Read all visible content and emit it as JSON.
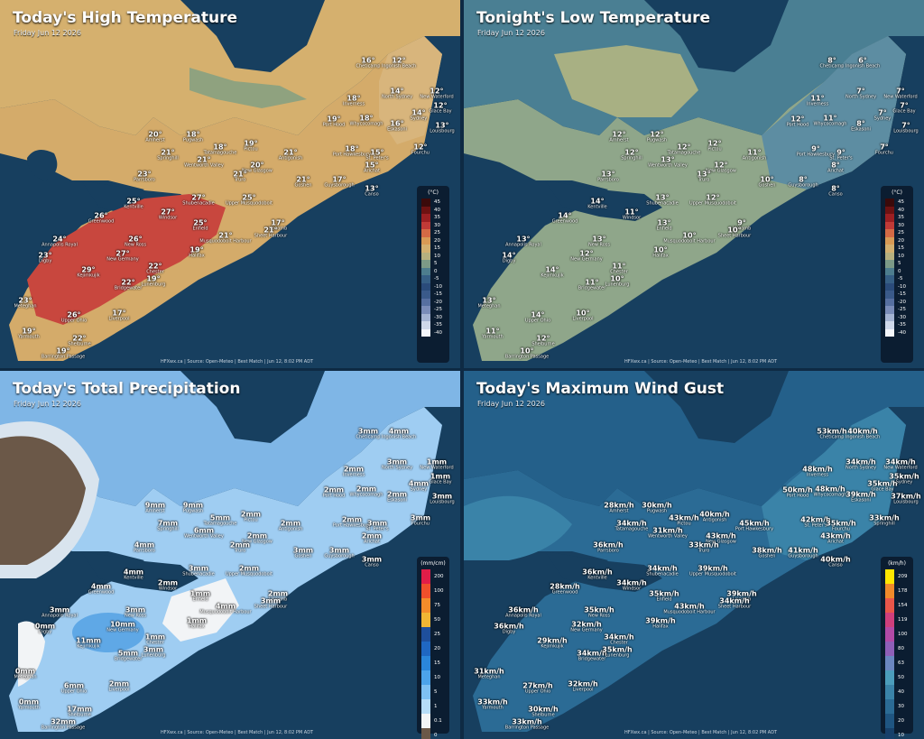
{
  "panels": [
    {
      "title": "Today's High Temperature",
      "subtitle": "Friday Jun 12 2026",
      "footer": "HFXwx.ca | Source: Open-Meteo | Best Match | Jun 12, 8:02 PM ADT",
      "legend": {
        "unit": "(°C)",
        "ticks": [
          "45",
          "40",
          "35",
          "30",
          "25",
          "20",
          "15",
          "10",
          "5",
          "0",
          "-5",
          "-10",
          "-15",
          "-20",
          "-25",
          "-30",
          "-35",
          "-40"
        ],
        "colors": [
          "#3b0a0a",
          "#6e1212",
          "#9c1f22",
          "#c03a37",
          "#d46a45",
          "#d89a55",
          "#d3b070",
          "#b6b07f",
          "#7c9a87",
          "#4d7d8e",
          "#365f85",
          "#2a4b7a",
          "#3a5a8a",
          "#566fa0",
          "#7a8cb8",
          "#a4b3d2",
          "#cfd8ea",
          "#f4f6fb"
        ]
      },
      "labels": [
        {
          "v": "16°",
          "n": "Chéticamp"
        },
        {
          "v": "12°",
          "n": "Ingonish Beach"
        },
        {
          "v": "18°",
          "n": "Inverness"
        },
        {
          "v": "14°",
          "n": "North Sydney"
        },
        {
          "v": "12°",
          "n": "New Waterford"
        },
        {
          "v": "14°",
          "n": "Sydney"
        },
        {
          "v": "12°",
          "n": "Glace Bay"
        },
        {
          "v": "19°",
          "n": "Port Hood"
        },
        {
          "v": "18°",
          "n": "Whycocomagh"
        },
        {
          "v": "16°",
          "n": "Eskasoni"
        },
        {
          "v": "13°",
          "n": "Louisbourg"
        },
        {
          "v": "20°",
          "n": "Amherst"
        },
        {
          "v": "18°",
          "n": "Pugwash"
        },
        {
          "v": "21°",
          "n": "Springhill"
        },
        {
          "v": "18°",
          "n": "Tatamagouche"
        },
        {
          "v": "19°",
          "n": "Pictou"
        },
        {
          "v": "21°",
          "n": "Antigonish"
        },
        {
          "v": "18°",
          "n": "Port Hawkesbury"
        },
        {
          "v": "15°",
          "n": "St. Peter's"
        },
        {
          "v": "12°",
          "n": "Fourchu"
        },
        {
          "v": "21°",
          "n": "Wentworth Valley"
        },
        {
          "v": "20°",
          "n": "New Glasgow"
        },
        {
          "v": "15°",
          "n": "Arichat"
        },
        {
          "v": "23°",
          "n": "Parrsboro"
        },
        {
          "v": "21°",
          "n": "Truro"
        },
        {
          "v": "21°",
          "n": "Goshen"
        },
        {
          "v": "17°",
          "n": "Guysborough"
        },
        {
          "v": "13°",
          "n": "Canso"
        },
        {
          "v": "25°",
          "n": "Kentville"
        },
        {
          "v": "27°",
          "n": "Shubenacadie"
        },
        {
          "v": "25°",
          "n": "Upper Musquodoboit"
        },
        {
          "v": "26°",
          "n": "Greenwood"
        },
        {
          "v": "27°",
          "n": "Windsor"
        },
        {
          "v": "25°",
          "n": "Enfield"
        },
        {
          "v": "17°",
          "n": "Liscomb"
        },
        {
          "v": "24°",
          "n": "Annapolis Royal"
        },
        {
          "v": "26°",
          "n": "New Ross"
        },
        {
          "v": "21°",
          "n": "Musquodoboit Harbour"
        },
        {
          "v": "21°",
          "n": "Sheet Harbour"
        },
        {
          "v": "23°",
          "n": "Digby"
        },
        {
          "v": "27°",
          "n": "New Germany"
        },
        {
          "v": "19°",
          "n": "Halifax"
        },
        {
          "v": "29°",
          "n": "Kejimkujik"
        },
        {
          "v": "22°",
          "n": "Chester"
        },
        {
          "v": "22°",
          "n": "Bridgewater"
        },
        {
          "v": "19°",
          "n": "Lunenburg"
        },
        {
          "v": "23°",
          "n": "Meteghan"
        },
        {
          "v": "26°",
          "n": "Upper Ohio"
        },
        {
          "v": "17°",
          "n": "Liverpool"
        },
        {
          "v": "19°",
          "n": "Yarmouth"
        },
        {
          "v": "22°",
          "n": "Shelburne"
        },
        {
          "v": "19°",
          "n": "Barrington Passage"
        }
      ]
    },
    {
      "title": "Tonight's Low Temperature",
      "subtitle": "Friday Jun 12 2026",
      "footer": "HFXwx.ca | Source: Open-Meteo | Best Match | Jun 12, 8:02 PM ADT",
      "legend": {
        "unit": "(°C)",
        "ticks": [
          "45",
          "40",
          "35",
          "30",
          "25",
          "20",
          "15",
          "10",
          "5",
          "0",
          "-5",
          "-10",
          "-15",
          "-20",
          "-25",
          "-30",
          "-35",
          "-40"
        ],
        "colors": [
          "#3b0a0a",
          "#6e1212",
          "#9c1f22",
          "#c03a37",
          "#d46a45",
          "#d89a55",
          "#d3b070",
          "#b6b07f",
          "#7c9a87",
          "#4d7d8e",
          "#365f85",
          "#2a4b7a",
          "#3a5a8a",
          "#566fa0",
          "#7a8cb8",
          "#a4b3d2",
          "#cfd8ea",
          "#f4f6fb"
        ]
      },
      "labels": [
        {
          "v": "8°",
          "n": "Chéticamp"
        },
        {
          "v": "6°",
          "n": "Ingonish Beach"
        },
        {
          "v": "11°",
          "n": "Inverness"
        },
        {
          "v": "7°",
          "n": "North Sydney"
        },
        {
          "v": "7°",
          "n": "New Waterford"
        },
        {
          "v": "7°",
          "n": "Sydney"
        },
        {
          "v": "7°",
          "n": "Glace Bay"
        },
        {
          "v": "12°",
          "n": "Port Hood"
        },
        {
          "v": "11°",
          "n": "Whycocomagh"
        },
        {
          "v": "8°",
          "n": "Eskasoni"
        },
        {
          "v": "7°",
          "n": "Louisbourg"
        },
        {
          "v": "12°",
          "n": "Amherst"
        },
        {
          "v": "12°",
          "n": "Pugwash"
        },
        {
          "v": "12°",
          "n": "Springhill"
        },
        {
          "v": "12°",
          "n": "Tatamagouche"
        },
        {
          "v": "12°",
          "n": "Pictou"
        },
        {
          "v": "11°",
          "n": "Antigonish"
        },
        {
          "v": "9°",
          "n": "Port Hawkesbury"
        },
        {
          "v": "9°",
          "n": "St. Peter's"
        },
        {
          "v": "7°",
          "n": "Fourchu"
        },
        {
          "v": "13°",
          "n": "Wentworth Valley"
        },
        {
          "v": "12°",
          "n": "New Glasgow"
        },
        {
          "v": "8°",
          "n": "Arichat"
        },
        {
          "v": "13°",
          "n": "Parrsboro"
        },
        {
          "v": "13°",
          "n": "Truro"
        },
        {
          "v": "10°",
          "n": "Goshen"
        },
        {
          "v": "8°",
          "n": "Guysborough"
        },
        {
          "v": "8°",
          "n": "Canso"
        },
        {
          "v": "14°",
          "n": "Kentville"
        },
        {
          "v": "13°",
          "n": "Shubenacadie"
        },
        {
          "v": "12°",
          "n": "Upper Musquodoboit"
        },
        {
          "v": "14°",
          "n": "Greenwood"
        },
        {
          "v": "11°",
          "n": "Windsor"
        },
        {
          "v": "13°",
          "n": "Enfield"
        },
        {
          "v": "9°",
          "n": "Liscomb"
        },
        {
          "v": "13°",
          "n": "Annapolis Royal"
        },
        {
          "v": "13°",
          "n": "New Ross"
        },
        {
          "v": "10°",
          "n": "Musquodoboit Harbour"
        },
        {
          "v": "10°",
          "n": "Sheet Harbour"
        },
        {
          "v": "14°",
          "n": "Digby"
        },
        {
          "v": "12°",
          "n": "New Germany"
        },
        {
          "v": "10°",
          "n": "Halifax"
        },
        {
          "v": "14°",
          "n": "Kejimkujik"
        },
        {
          "v": "11°",
          "n": "Chester"
        },
        {
          "v": "11°",
          "n": "Bridgewater"
        },
        {
          "v": "10°",
          "n": "Lunenburg"
        },
        {
          "v": "13°",
          "n": "Meteghan"
        },
        {
          "v": "14°",
          "n": "Upper Ohio"
        },
        {
          "v": "10°",
          "n": "Liverpool"
        },
        {
          "v": "11°",
          "n": "Yarmouth"
        },
        {
          "v": "12°",
          "n": "Shelburne"
        },
        {
          "v": "10°",
          "n": "Barrington Passage"
        }
      ]
    },
    {
      "title": "Today's Total Precipitation",
      "subtitle": "Friday Jun 12 2026",
      "footer": "HFXwx.ca | Source: Open-Meteo | Best Match | Jun 12, 8:02 PM ADT",
      "legend": {
        "unit": "(mm/cm)",
        "ticks": [
          "200",
          "100",
          "75",
          "50",
          "25",
          "20",
          "15",
          "10",
          "5",
          "1",
          "0.1",
          "0"
        ],
        "colors": [
          "#e11d48",
          "#ef4f2b",
          "#f28c2a",
          "#f0b634",
          "#1e4f9c",
          "#1f67c2",
          "#2a86da",
          "#4ca3ea",
          "#7ec0f2",
          "#b6dcf7",
          "#f2f4f6",
          "#6b5848"
        ]
      },
      "labels": [
        {
          "v": "3mm",
          "n": "Chéticamp"
        },
        {
          "v": "4mm",
          "n": "Ingonish Beach"
        },
        {
          "v": "2mm",
          "n": "Inverness"
        },
        {
          "v": "3mm",
          "n": "North Sydney"
        },
        {
          "v": "1mm",
          "n": "New Waterford"
        },
        {
          "v": "4mm",
          "n": "Sydney"
        },
        {
          "v": "1mm",
          "n": "Glace Bay"
        },
        {
          "v": "2mm",
          "n": "Port Hood"
        },
        {
          "v": "2mm",
          "n": "Whycocomagh"
        },
        {
          "v": "2mm",
          "n": "Eskasoni"
        },
        {
          "v": "3mm",
          "n": "Louisbourg"
        },
        {
          "v": "9mm",
          "n": "Amherst"
        },
        {
          "v": "9mm",
          "n": "Pugwash"
        },
        {
          "v": "7mm",
          "n": "Springhill"
        },
        {
          "v": "5mm",
          "n": "Tatamagouche"
        },
        {
          "v": "2mm",
          "n": "Pictou"
        },
        {
          "v": "2mm",
          "n": "Antigonish"
        },
        {
          "v": "2mm",
          "n": "Port Hawkesbury"
        },
        {
          "v": "3mm",
          "n": "St. Peter's"
        },
        {
          "v": "3mm",
          "n": "Fourchu"
        },
        {
          "v": "6mm",
          "n": "Wentworth Valley"
        },
        {
          "v": "2mm",
          "n": "New Glasgow"
        },
        {
          "v": "2mm",
          "n": "Arichat"
        },
        {
          "v": "4mm",
          "n": "Parrsboro"
        },
        {
          "v": "2mm",
          "n": "Truro"
        },
        {
          "v": "3mm",
          "n": "Goshen"
        },
        {
          "v": "3mm",
          "n": "Guysborough"
        },
        {
          "v": "3mm",
          "n": "Canso"
        },
        {
          "v": "4mm",
          "n": "Kentville"
        },
        {
          "v": "3mm",
          "n": "Shubenacadie"
        },
        {
          "v": "2mm",
          "n": "Upper Musquodoboit"
        },
        {
          "v": "4mm",
          "n": "Greenwood"
        },
        {
          "v": "2mm",
          "n": "Windsor"
        },
        {
          "v": "1mm",
          "n": "Enfield"
        },
        {
          "v": "2mm",
          "n": "Liscomb"
        },
        {
          "v": "3mm",
          "n": "Annapolis Royal"
        },
        {
          "v": "3mm",
          "n": "New Ross"
        },
        {
          "v": "4mm",
          "n": "Musquodoboit Harbour"
        },
        {
          "v": "3mm",
          "n": "Sheet Harbour"
        },
        {
          "v": "0mm",
          "n": "Digby"
        },
        {
          "v": "10mm",
          "n": "New Germany"
        },
        {
          "v": "1mm",
          "n": "Halifax"
        },
        {
          "v": "11mm",
          "n": "Kejimkujik"
        },
        {
          "v": "1mm",
          "n": "Chester"
        },
        {
          "v": "5mm",
          "n": "Bridgewater"
        },
        {
          "v": "3mm",
          "n": "Lunenburg"
        },
        {
          "v": "0mm",
          "n": "Meteghan"
        },
        {
          "v": "6mm",
          "n": "Upper Ohio"
        },
        {
          "v": "2mm",
          "n": "Liverpool"
        },
        {
          "v": "0mm",
          "n": "Yarmouth"
        },
        {
          "v": "17mm",
          "n": "Shelburne"
        },
        {
          "v": "32mm",
          "n": "Barrington Passage"
        }
      ]
    },
    {
      "title": "Today's Maximum Wind Gust",
      "subtitle": "Friday Jun 12 2026",
      "footer": "HFXwx.ca | Source: Open-Meteo | Best Match | Jun 12, 8:02 PM ADT",
      "legend": {
        "unit": "(km/h)",
        "ticks": [
          "209",
          "178",
          "154",
          "119",
          "100",
          "80",
          "63",
          "50",
          "40",
          "30",
          "20",
          "10"
        ],
        "colors": [
          "#ffe600",
          "#f08a2a",
          "#e8564a",
          "#cf3f7c",
          "#b24aa6",
          "#8f5fb8",
          "#6b86c0",
          "#4b9dbb",
          "#3a83a8",
          "#2b6b95",
          "#1f5581",
          "#17406a"
        ]
      },
      "labels": [
        {
          "v": "53km/h",
          "n": "Chéticamp"
        },
        {
          "v": "40km/h",
          "n": "Ingonish Beach"
        },
        {
          "v": "48km/h",
          "n": "Inverness"
        },
        {
          "v": "34km/h",
          "n": "North Sydney"
        },
        {
          "v": "34km/h",
          "n": "New Waterford"
        },
        {
          "v": "35km/h",
          "n": "Glace Bay"
        },
        {
          "v": "35km/h",
          "n": "Sydney"
        },
        {
          "v": "50km/h",
          "n": "Port Hood"
        },
        {
          "v": "48km/h",
          "n": "Whycocomagh"
        },
        {
          "v": "39km/h",
          "n": "Eskasoni"
        },
        {
          "v": "37km/h",
          "n": "Louisbourg"
        },
        {
          "v": "28km/h",
          "n": "Amherst"
        },
        {
          "v": "30km/h",
          "n": "Pugwash"
        },
        {
          "v": "34km/h",
          "n": "Tatamagouche"
        },
        {
          "v": "43km/h",
          "n": "Pictou"
        },
        {
          "v": "40km/h",
          "n": "Antigonish"
        },
        {
          "v": "45km/h",
          "n": "Port Hawkesbury"
        },
        {
          "v": "42km/h",
          "n": "St. Peter's"
        },
        {
          "v": "35km/h",
          "n": "Fourchu"
        },
        {
          "v": "33km/h",
          "n": "Springhill"
        },
        {
          "v": "31km/h",
          "n": "Wentworth Valley"
        },
        {
          "v": "43km/h",
          "n": "New Glasgow"
        },
        {
          "v": "43km/h",
          "n": "Arichat"
        },
        {
          "v": "36km/h",
          "n": "Parrsboro"
        },
        {
          "v": "33km/h",
          "n": "Truro"
        },
        {
          "v": "38km/h",
          "n": "Goshen"
        },
        {
          "v": "41km/h",
          "n": "Guysborough"
        },
        {
          "v": "40km/h",
          "n": "Canso"
        },
        {
          "v": "36km/h",
          "n": "Kentville"
        },
        {
          "v": "34km/h",
          "n": "Shubenacadie"
        },
        {
          "v": "39km/h",
          "n": "Upper Musquodoboit"
        },
        {
          "v": "28km/h",
          "n": "Greenwood"
        },
        {
          "v": "34km/h",
          "n": "Windsor"
        },
        {
          "v": "35km/h",
          "n": "Enfield"
        },
        {
          "v": "39km/h",
          "n": "Liscomb"
        },
        {
          "v": "36km/h",
          "n": "Annapolis Royal"
        },
        {
          "v": "35km/h",
          "n": "New Ross"
        },
        {
          "v": "43km/h",
          "n": "Musquodoboit Harbour"
        },
        {
          "v": "34km/h",
          "n": "Sheet Harbour"
        },
        {
          "v": "36km/h",
          "n": "Digby"
        },
        {
          "v": "32km/h",
          "n": "New Germany"
        },
        {
          "v": "39km/h",
          "n": "Halifax"
        },
        {
          "v": "29km/h",
          "n": "Kejimkujik"
        },
        {
          "v": "34km/h",
          "n": "Chester"
        },
        {
          "v": "34km/h",
          "n": "Bridgewater"
        },
        {
          "v": "35km/h",
          "n": "Lunenburg"
        },
        {
          "v": "31km/h",
          "n": "Meteghan"
        },
        {
          "v": "27km/h",
          "n": "Upper Ohio"
        },
        {
          "v": "32km/h",
          "n": "Liverpool"
        },
        {
          "v": "33km/h",
          "n": "Yarmouth"
        },
        {
          "v": "30km/h",
          "n": "Shelburne"
        },
        {
          "v": "33km/h",
          "n": "Barrington Passage"
        }
      ]
    }
  ]
}
